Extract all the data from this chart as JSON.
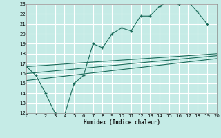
{
  "xlabel": "Humidex (Indice chaleur)",
  "bg_color": "#c5ebe6",
  "grid_color": "#ffffff",
  "line_color": "#1a6b5a",
  "xlim": [
    0,
    20
  ],
  "ylim": [
    12,
    23
  ],
  "xticks": [
    0,
    1,
    2,
    3,
    4,
    5,
    6,
    7,
    8,
    9,
    10,
    11,
    12,
    13,
    14,
    15,
    16,
    17,
    18,
    19,
    20
  ],
  "yticks": [
    12,
    13,
    14,
    15,
    16,
    17,
    18,
    19,
    20,
    21,
    22,
    23
  ],
  "line1_x": [
    0,
    1,
    2,
    3,
    4,
    5,
    6,
    7,
    8,
    9,
    10,
    11,
    12,
    13,
    14,
    15,
    16,
    17,
    18,
    19
  ],
  "line1_y": [
    16.7,
    15.8,
    14.0,
    12.0,
    11.8,
    15.0,
    15.8,
    19.0,
    18.6,
    20.0,
    20.6,
    20.3,
    21.8,
    21.8,
    22.8,
    23.3,
    23.0,
    23.3,
    22.2,
    21.0
  ],
  "line2_x": [
    0,
    20
  ],
  "line2_y": [
    16.7,
    18.0
  ],
  "line3_x": [
    0,
    20
  ],
  "line3_y": [
    16.0,
    17.8
  ],
  "line4_x": [
    0,
    20
  ],
  "line4_y": [
    15.3,
    17.5
  ]
}
